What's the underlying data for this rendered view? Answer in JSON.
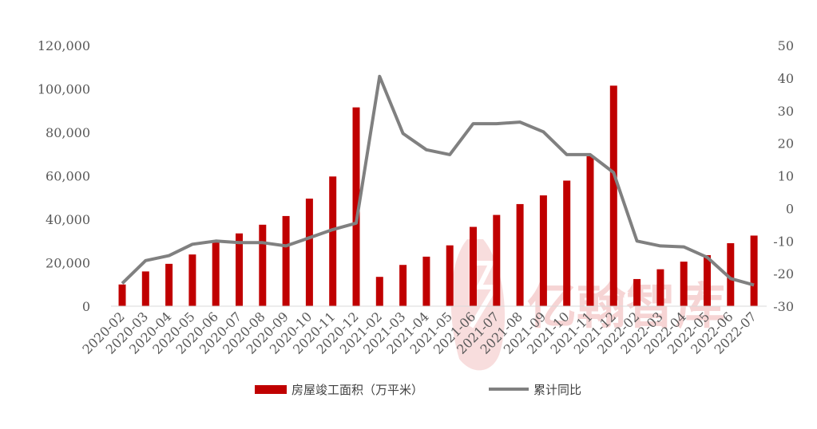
{
  "chart_data": {
    "type": "bar",
    "categories": [
      "2020-02",
      "2020-03",
      "2020-04",
      "2020-05",
      "2020-06",
      "2020-07",
      "2020-08",
      "2020-09",
      "2020-10",
      "2020-11",
      "2020-12",
      "2021-02",
      "2021-03",
      "2021-04",
      "2021-05",
      "2021-06",
      "2021-07",
      "2021-08",
      "2021-09",
      "2021-10",
      "2021-11",
      "2021-12",
      "2022-02",
      "2022-03",
      "2022-04",
      "2022-05",
      "2022-06",
      "2022-07"
    ],
    "series": [
      {
        "name": "房屋竣工面积（万平米）",
        "type": "bar",
        "axis": "left",
        "color": "#c00000",
        "values": [
          10000,
          16000,
          19500,
          23800,
          29800,
          33500,
          37500,
          41500,
          49500,
          59700,
          91500,
          13500,
          19000,
          22800,
          28000,
          36500,
          42000,
          47000,
          51000,
          57800,
          69000,
          101500,
          12500,
          17000,
          20500,
          23500,
          29000,
          32500
        ]
      },
      {
        "name": "累计同比",
        "type": "line",
        "axis": "right",
        "color": "#808080",
        "values": [
          -23,
          -16,
          -14.5,
          -11,
          -10,
          -10.5,
          -10.5,
          -11.5,
          -9,
          -6.5,
          -4.5,
          40.5,
          23,
          18,
          16.5,
          26,
          26,
          26.5,
          23.5,
          16.5,
          16.5,
          11,
          -10,
          -11.5,
          -11.8,
          -15,
          -21.5,
          -23.5
        ]
      }
    ],
    "y_left": {
      "ylim": [
        0,
        120000
      ],
      "ticks": [
        "0",
        "20,000",
        "40,000",
        "60,000",
        "80,000",
        "100,000",
        "120,000"
      ],
      "tick_values": [
        0,
        20000,
        40000,
        60000,
        80000,
        100000,
        120000
      ]
    },
    "y_right": {
      "ylim": [
        -30,
        50
      ],
      "ticks": [
        "-30",
        "-20",
        "-10",
        "0",
        "10",
        "20",
        "30",
        "40",
        "50"
      ],
      "tick_values": [
        -30,
        -20,
        -10,
        0,
        10,
        20,
        30,
        40,
        50
      ]
    },
    "grid": false,
    "legend_position": "bottom-center"
  },
  "watermark": {
    "text": "亿翰智库",
    "color": "#f3c6c6"
  }
}
